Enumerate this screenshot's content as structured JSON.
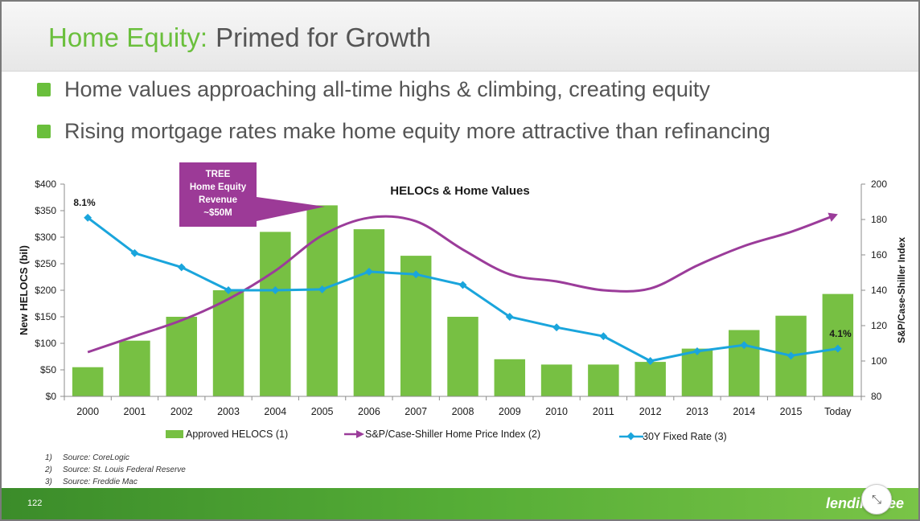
{
  "slide": {
    "title_part1": "Home Equity:",
    "title_part2": "Primed for Growth",
    "bullets": [
      "Home values approaching all-time highs & climbing, creating equity",
      "Rising mortgage rates make home equity more attractive than refinancing"
    ],
    "callout": "TREE\nHome Equity\nRevenue\n~$50M",
    "sources": [
      {
        "num": "1)",
        "text": "Source:  CoreLogic"
      },
      {
        "num": "2)",
        "text": "Source:  St. Louis Federal Reserve"
      },
      {
        "num": "3)",
        "text": "Source:  Freddie Mac"
      }
    ],
    "page_number": "122",
    "logo_text": "lendingtree",
    "accent_color": "#6abf3c",
    "shrink_icon": "collapse-arrows-icon"
  },
  "chart_data": {
    "type": "bar",
    "title": "HELOCs & Home Values",
    "categories": [
      "2000",
      "2001",
      "2002",
      "2003",
      "2004",
      "2005",
      "2006",
      "2007",
      "2008",
      "2009",
      "2010",
      "2011",
      "2012",
      "2013",
      "2014",
      "2015",
      "Today"
    ],
    "ylabel": "New HELOCS (bil)",
    "ylabel_right": "S&P/Case-Shiller Index",
    "ylim": [
      0,
      400
    ],
    "yticks": [
      "$0",
      "$50",
      "$100",
      "$150",
      "$200",
      "$250",
      "$300",
      "$350",
      "$400"
    ],
    "ylim_right": [
      80,
      200
    ],
    "yticks_right": [
      "80",
      "100",
      "120",
      "140",
      "160",
      "180",
      "200"
    ],
    "series": [
      {
        "name": "Approved HELOCS (1)",
        "type": "bar",
        "axis": "left",
        "color": "#77c043",
        "values": [
          55,
          105,
          150,
          200,
          310,
          360,
          315,
          265,
          150,
          70,
          60,
          60,
          65,
          90,
          125,
          152,
          193
        ]
      },
      {
        "name": "S&P/Case-Shiller Home Price Index (2)",
        "type": "line",
        "axis": "right",
        "color": "#9b3c9a",
        "values": [
          105,
          114,
          123,
          135,
          151,
          171,
          181,
          179,
          163,
          149,
          145,
          140,
          141,
          154,
          165,
          173,
          183
        ]
      },
      {
        "name": "30Y Fixed Rate (3)",
        "type": "line",
        "axis": "right-scaled",
        "color": "#1aa5dc",
        "values": [
          181,
          161,
          153,
          140,
          140,
          140.5,
          150.5,
          149,
          143,
          125,
          119,
          114,
          100,
          105.5,
          109,
          103,
          107
        ]
      }
    ],
    "annotations": [
      "8.1%",
      "4.1%"
    ],
    "grid": false,
    "legend_position": "bottom"
  }
}
